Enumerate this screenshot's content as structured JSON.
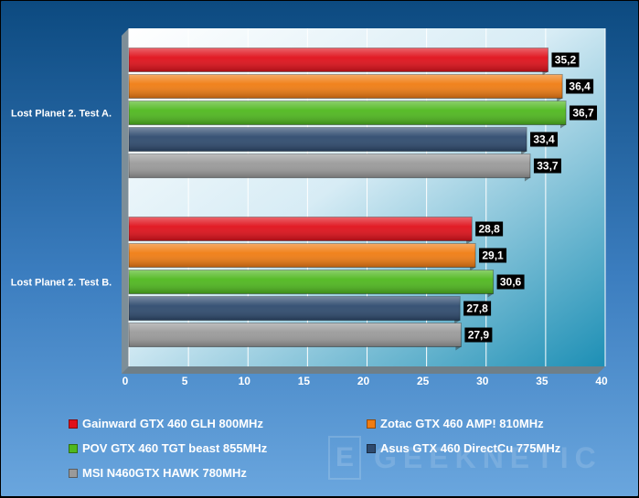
{
  "chart_data": {
    "type": "bar",
    "orientation": "horizontal",
    "categories": [
      "Lost Planet 2. Test A.",
      "Lost Planet 2. Test B."
    ],
    "series": [
      {
        "name": "Gainward GTX 460 GLH 800MHz",
        "color": "#e0101a",
        "values": [
          35.2,
          28.8
        ]
      },
      {
        "name": "Zotac GTX 460 AMP! 810MHz",
        "color": "#f07c12",
        "values": [
          36.4,
          29.1
        ]
      },
      {
        "name": "POV GTX 460 TGT beast 855MHz",
        "color": "#4fb81e",
        "values": [
          36.7,
          30.6
        ]
      },
      {
        "name": "Asus GTX 460 DirectCu 775MHz",
        "color": "#2e4a6e",
        "values": [
          33.4,
          27.8
        ]
      },
      {
        "name": "MSI N460GTX HAWK 780MHz",
        "color": "#9a9a9a",
        "values": [
          33.7,
          27.9
        ]
      }
    ],
    "data_labels": [
      [
        "35,2",
        "36,4",
        "36,7",
        "33,4",
        "33,7"
      ],
      [
        "28,8",
        "29,1",
        "30,6",
        "27,8",
        "27,9"
      ]
    ],
    "xlim": [
      0,
      40
    ],
    "x_ticks": [
      "0",
      "5",
      "10",
      "15",
      "20",
      "25",
      "30",
      "35",
      "40"
    ],
    "grid": true,
    "legend_position": "bottom"
  },
  "watermark": {
    "text": "GEEKNETIC",
    "mark": "E"
  }
}
